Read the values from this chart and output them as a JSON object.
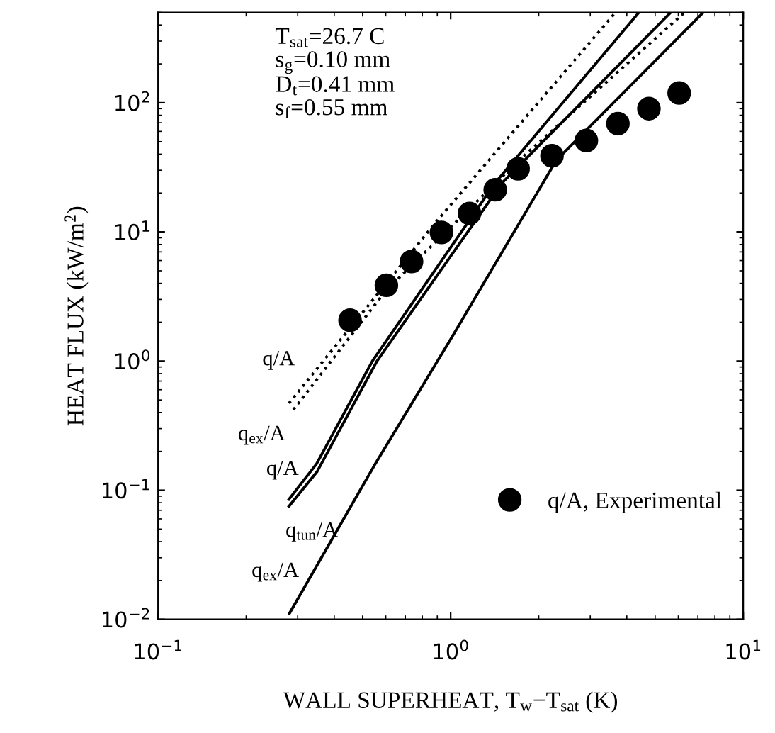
{
  "chart_data": {
    "type": "line",
    "ylabel": "HEAT FLUX (kW/m$^{2}$)",
    "xlabel": "WALL SUPERHEAT, T$_{w}$−T$_{sat}$ (K)",
    "log": "xy",
    "xlim": [
      0.1,
      10
    ],
    "ylim": [
      0.01,
      500
    ],
    "xticks": [
      {
        "value": 0.1,
        "label": "10$^{−1}$"
      },
      {
        "value": 1,
        "label": "10$^{0}$"
      },
      {
        "value": 10,
        "label": "10$^{1}$"
      }
    ],
    "yticks": [
      {
        "value": 0.01,
        "label": "10$^{−2}$"
      },
      {
        "value": 0.1,
        "label": "10$^{−1}$"
      },
      {
        "value": 1,
        "label": "10$^{0}$"
      },
      {
        "value": 10,
        "label": "10$^{1}$"
      },
      {
        "value": 100,
        "label": "10$^{2}$"
      }
    ],
    "grid": false,
    "legend": "bottom right",
    "annotations": [
      "T$_{sat}$=26.7 C\ns$_{g}$=0.10 mm\nD$_{t}$=0.41 mm\ns$_{f}$=0.55 mm"
    ],
    "series": [
      {
        "name": "q/A",
        "line_style": "dotted",
        "color": "#000000",
        "x": [
          0.28,
          0.89,
          3.66
        ],
        "values": [
          0.47,
          11.9,
          500
        ]
      },
      {
        "name": "q$_{ex}$/A",
        "line_style": "dotted",
        "color": "#000000",
        "x": [
          0.29,
          0.6,
          1.71,
          6.3
        ],
        "values": [
          0.42,
          3.5,
          35.8,
          500
        ]
      },
      {
        "name": "q/A",
        "line_style": "solid",
        "color": "#000000",
        "x": [
          0.28,
          0.348,
          0.54,
          1.42,
          4.4
        ],
        "values": [
          0.085,
          0.16,
          1.0,
          24,
          500
        ]
      },
      {
        "name": "q$_{tun}$/A",
        "line_style": "solid",
        "color": "#000000",
        "x": [
          0.28,
          0.35,
          0.56,
          1.5,
          5.65
        ],
        "values": [
          0.075,
          0.14,
          1.0,
          24,
          500
        ]
      },
      {
        "name": "q$_{ex}$/A",
        "line_style": "solid",
        "color": "#000000",
        "x": [
          0.281,
          0.548,
          0.995,
          2.3,
          7.3
        ],
        "values": [
          0.0111,
          0.155,
          1.45,
          36,
          500
        ]
      },
      {
        "name": "q/A, Experimental",
        "type": "scatter",
        "marker": "circle",
        "color": "#000000",
        "x": [
          0.453,
          0.603,
          0.735,
          0.93,
          1.16,
          1.42,
          1.7,
          2.22,
          2.91,
          3.73,
          4.76,
          6.04
        ],
        "values": [
          2.07,
          3.86,
          5.9,
          9.9,
          13.9,
          21.2,
          30.8,
          38.9,
          51,
          69,
          90,
          119
        ]
      }
    ]
  }
}
